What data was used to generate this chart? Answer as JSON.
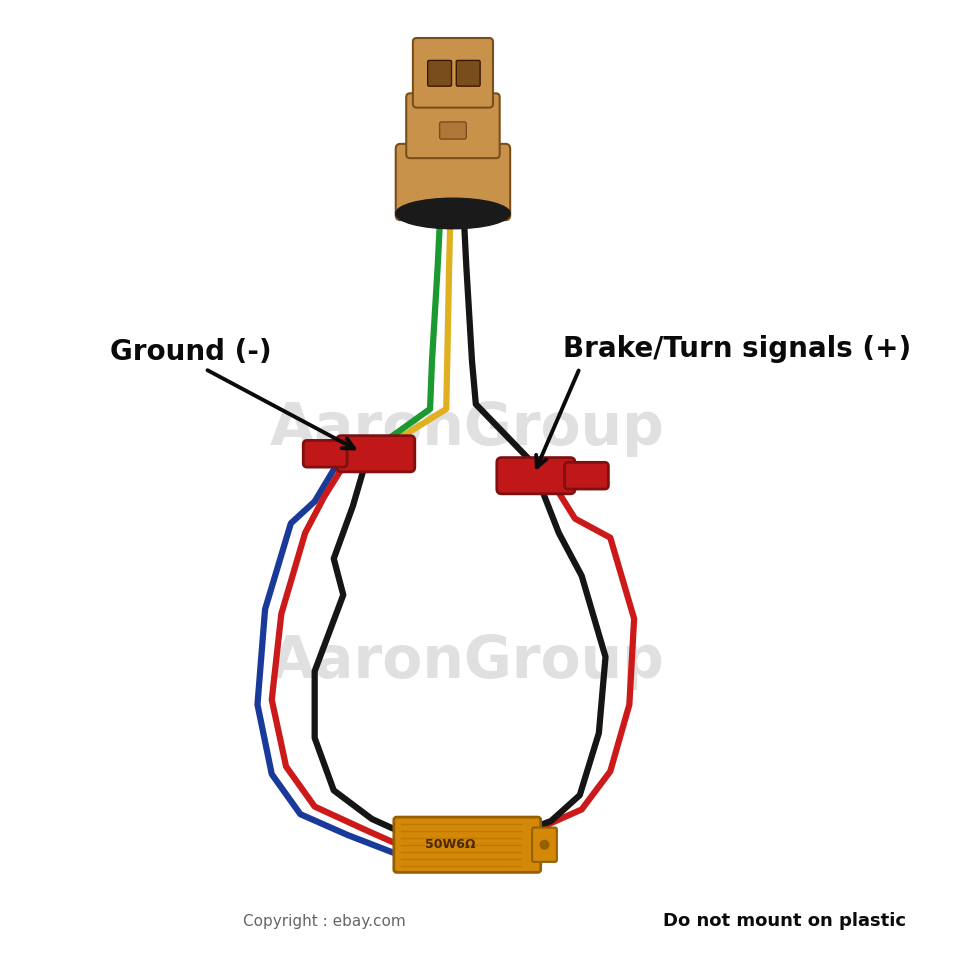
{
  "bg_color": "#ffffff",
  "label_ground": "Ground (-)",
  "label_brake": "Brake/Turn signals (+)",
  "label_copyright": "Copyright : ebay.com",
  "label_nomount": "Do not mount on plastic",
  "label_watermark1": "AaronGroup",
  "label_watermark2": "AaronGroup",
  "resistor_label": "50W6Ω",
  "connector_color": "#C8924A",
  "connector_dark": "#7A4E1A",
  "connector_mid": "#B07838",
  "black_ring_color": "#1A1A1A",
  "wire_green": "#1A9A30",
  "wire_yellow": "#E0B020",
  "wire_red": "#CC1A1A",
  "wire_black": "#151515",
  "wire_blue": "#1A3A99",
  "splice_red": "#C01818",
  "splice_dark": "#801010",
  "resistor_gold": "#D48808",
  "resistor_stripe": "#B87000",
  "resistor_dark": "#966000",
  "annotation_color": "#0A0A0A",
  "watermark_color": "#CCCCCC",
  "font_label": 20,
  "font_copyright": 11,
  "font_nomount": 13,
  "font_watermark": 42,
  "font_resistor": 9,
  "lw_wire": 4.5
}
